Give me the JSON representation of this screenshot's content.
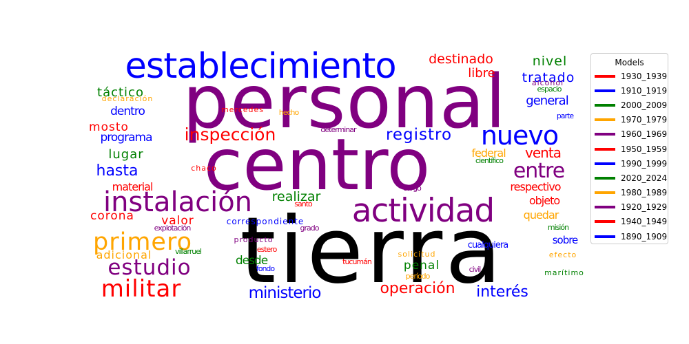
{
  "chart_data": {
    "type": "wordcloud",
    "legend": {
      "title": "Models",
      "placement": "right",
      "entries": [
        {
          "label": "1930_1939",
          "color": "#ff0000"
        },
        {
          "label": "1910_1919",
          "color": "#0000ff"
        },
        {
          "label": "2000_2009",
          "color": "#008000"
        },
        {
          "label": "1970_1979",
          "color": "#ffa500"
        },
        {
          "label": "1960_1969",
          "color": "#800080"
        },
        {
          "label": "1950_1959",
          "color": "#ff0000"
        },
        {
          "label": "1990_1999",
          "color": "#0000ff"
        },
        {
          "label": "2020_2024",
          "color": "#008000"
        },
        {
          "label": "1980_1989",
          "color": "#ffa500"
        },
        {
          "label": "1920_1929",
          "color": "#800080"
        },
        {
          "label": "1940_1949",
          "color": "#ff0000"
        },
        {
          "label": "1890_1909",
          "color": "#0000ff"
        }
      ]
    },
    "words": [
      {
        "text": "tierra",
        "color": "#000000"
      },
      {
        "text": "personal",
        "color": "#800080"
      },
      {
        "text": "centro",
        "color": "#800080"
      },
      {
        "text": "establecimiento",
        "color": "#0000ff"
      },
      {
        "text": "actividad",
        "color": "#800080"
      },
      {
        "text": "instalación",
        "color": "#800080"
      },
      {
        "text": "nuevo",
        "color": "#0000ff"
      },
      {
        "text": "primero",
        "color": "#ffa500"
      },
      {
        "text": "militar",
        "color": "#ff0000"
      },
      {
        "text": "estudio",
        "color": "#800080"
      },
      {
        "text": "entre",
        "color": "#800080"
      },
      {
        "text": "inspección",
        "color": "#ff0000"
      },
      {
        "text": "registro",
        "color": "#0000ff"
      },
      {
        "text": "ministerio",
        "color": "#0000ff"
      },
      {
        "text": "operación",
        "color": "#ff0000"
      },
      {
        "text": "interés",
        "color": "#0000ff"
      },
      {
        "text": "hasta",
        "color": "#0000ff"
      },
      {
        "text": "venta",
        "color": "#ff0000"
      },
      {
        "text": "destinado",
        "color": "#ff0000"
      },
      {
        "text": "nivel",
        "color": "#008000"
      },
      {
        "text": "tratado",
        "color": "#0000ff"
      },
      {
        "text": "libre",
        "color": "#ff0000"
      },
      {
        "text": "general",
        "color": "#0000ff"
      },
      {
        "text": "táctico",
        "color": "#008000"
      },
      {
        "text": "dentro",
        "color": "#0000ff"
      },
      {
        "text": "mosto",
        "color": "#ff0000"
      },
      {
        "text": "programa",
        "color": "#0000ff"
      },
      {
        "text": "lugar",
        "color": "#008000"
      },
      {
        "text": "federal",
        "color": "#ffa500"
      },
      {
        "text": "respectivo",
        "color": "#ff0000"
      },
      {
        "text": "objeto",
        "color": "#ff0000"
      },
      {
        "text": "realizar",
        "color": "#008000"
      },
      {
        "text": "material",
        "color": "#ff0000"
      },
      {
        "text": "quedar",
        "color": "#ffa500"
      },
      {
        "text": "valor",
        "color": "#ff0000"
      },
      {
        "text": "corona",
        "color": "#ff0000"
      },
      {
        "text": "penal",
        "color": "#008000"
      },
      {
        "text": "desde",
        "color": "#008000"
      },
      {
        "text": "adicional",
        "color": "#ffa500"
      },
      {
        "text": "sobre",
        "color": "#0000ff"
      },
      {
        "text": "cualquiera",
        "color": "#0000ff"
      },
      {
        "text": "correspondiente",
        "color": "#0000ff"
      },
      {
        "text": "explotación",
        "color": "#800080"
      },
      {
        "text": "grado",
        "color": "#800080"
      },
      {
        "text": "misión",
        "color": "#008000"
      },
      {
        "text": "producto",
        "color": "#800080"
      },
      {
        "text": "estero",
        "color": "#ff0000"
      },
      {
        "text": "villarruel",
        "color": "#008000"
      },
      {
        "text": "fondo",
        "color": "#0000ff"
      },
      {
        "text": "solicitud",
        "color": "#ffa500"
      },
      {
        "text": "efecto",
        "color": "#ffa500"
      },
      {
        "text": "tucumán",
        "color": "#ff0000"
      },
      {
        "text": "período",
        "color": "#ffa500"
      },
      {
        "text": "civil",
        "color": "#800080"
      },
      {
        "text": "marítimo",
        "color": "#008000"
      },
      {
        "text": "declaración",
        "color": "#ffa500"
      },
      {
        "text": "mercedes",
        "color": "#ff0000"
      },
      {
        "text": "hecho",
        "color": "#ffa500"
      },
      {
        "text": "determinar",
        "color": "#800080"
      },
      {
        "text": "chaco",
        "color": "#ff0000"
      },
      {
        "text": "científico",
        "color": "#008000"
      },
      {
        "text": "cargo",
        "color": "#800080"
      },
      {
        "text": "santo",
        "color": "#ff0000"
      },
      {
        "text": "alcohol",
        "color": "#800080"
      },
      {
        "text": "espacio",
        "color": "#008000"
      },
      {
        "text": "parte",
        "color": "#0000ff"
      }
    ]
  }
}
